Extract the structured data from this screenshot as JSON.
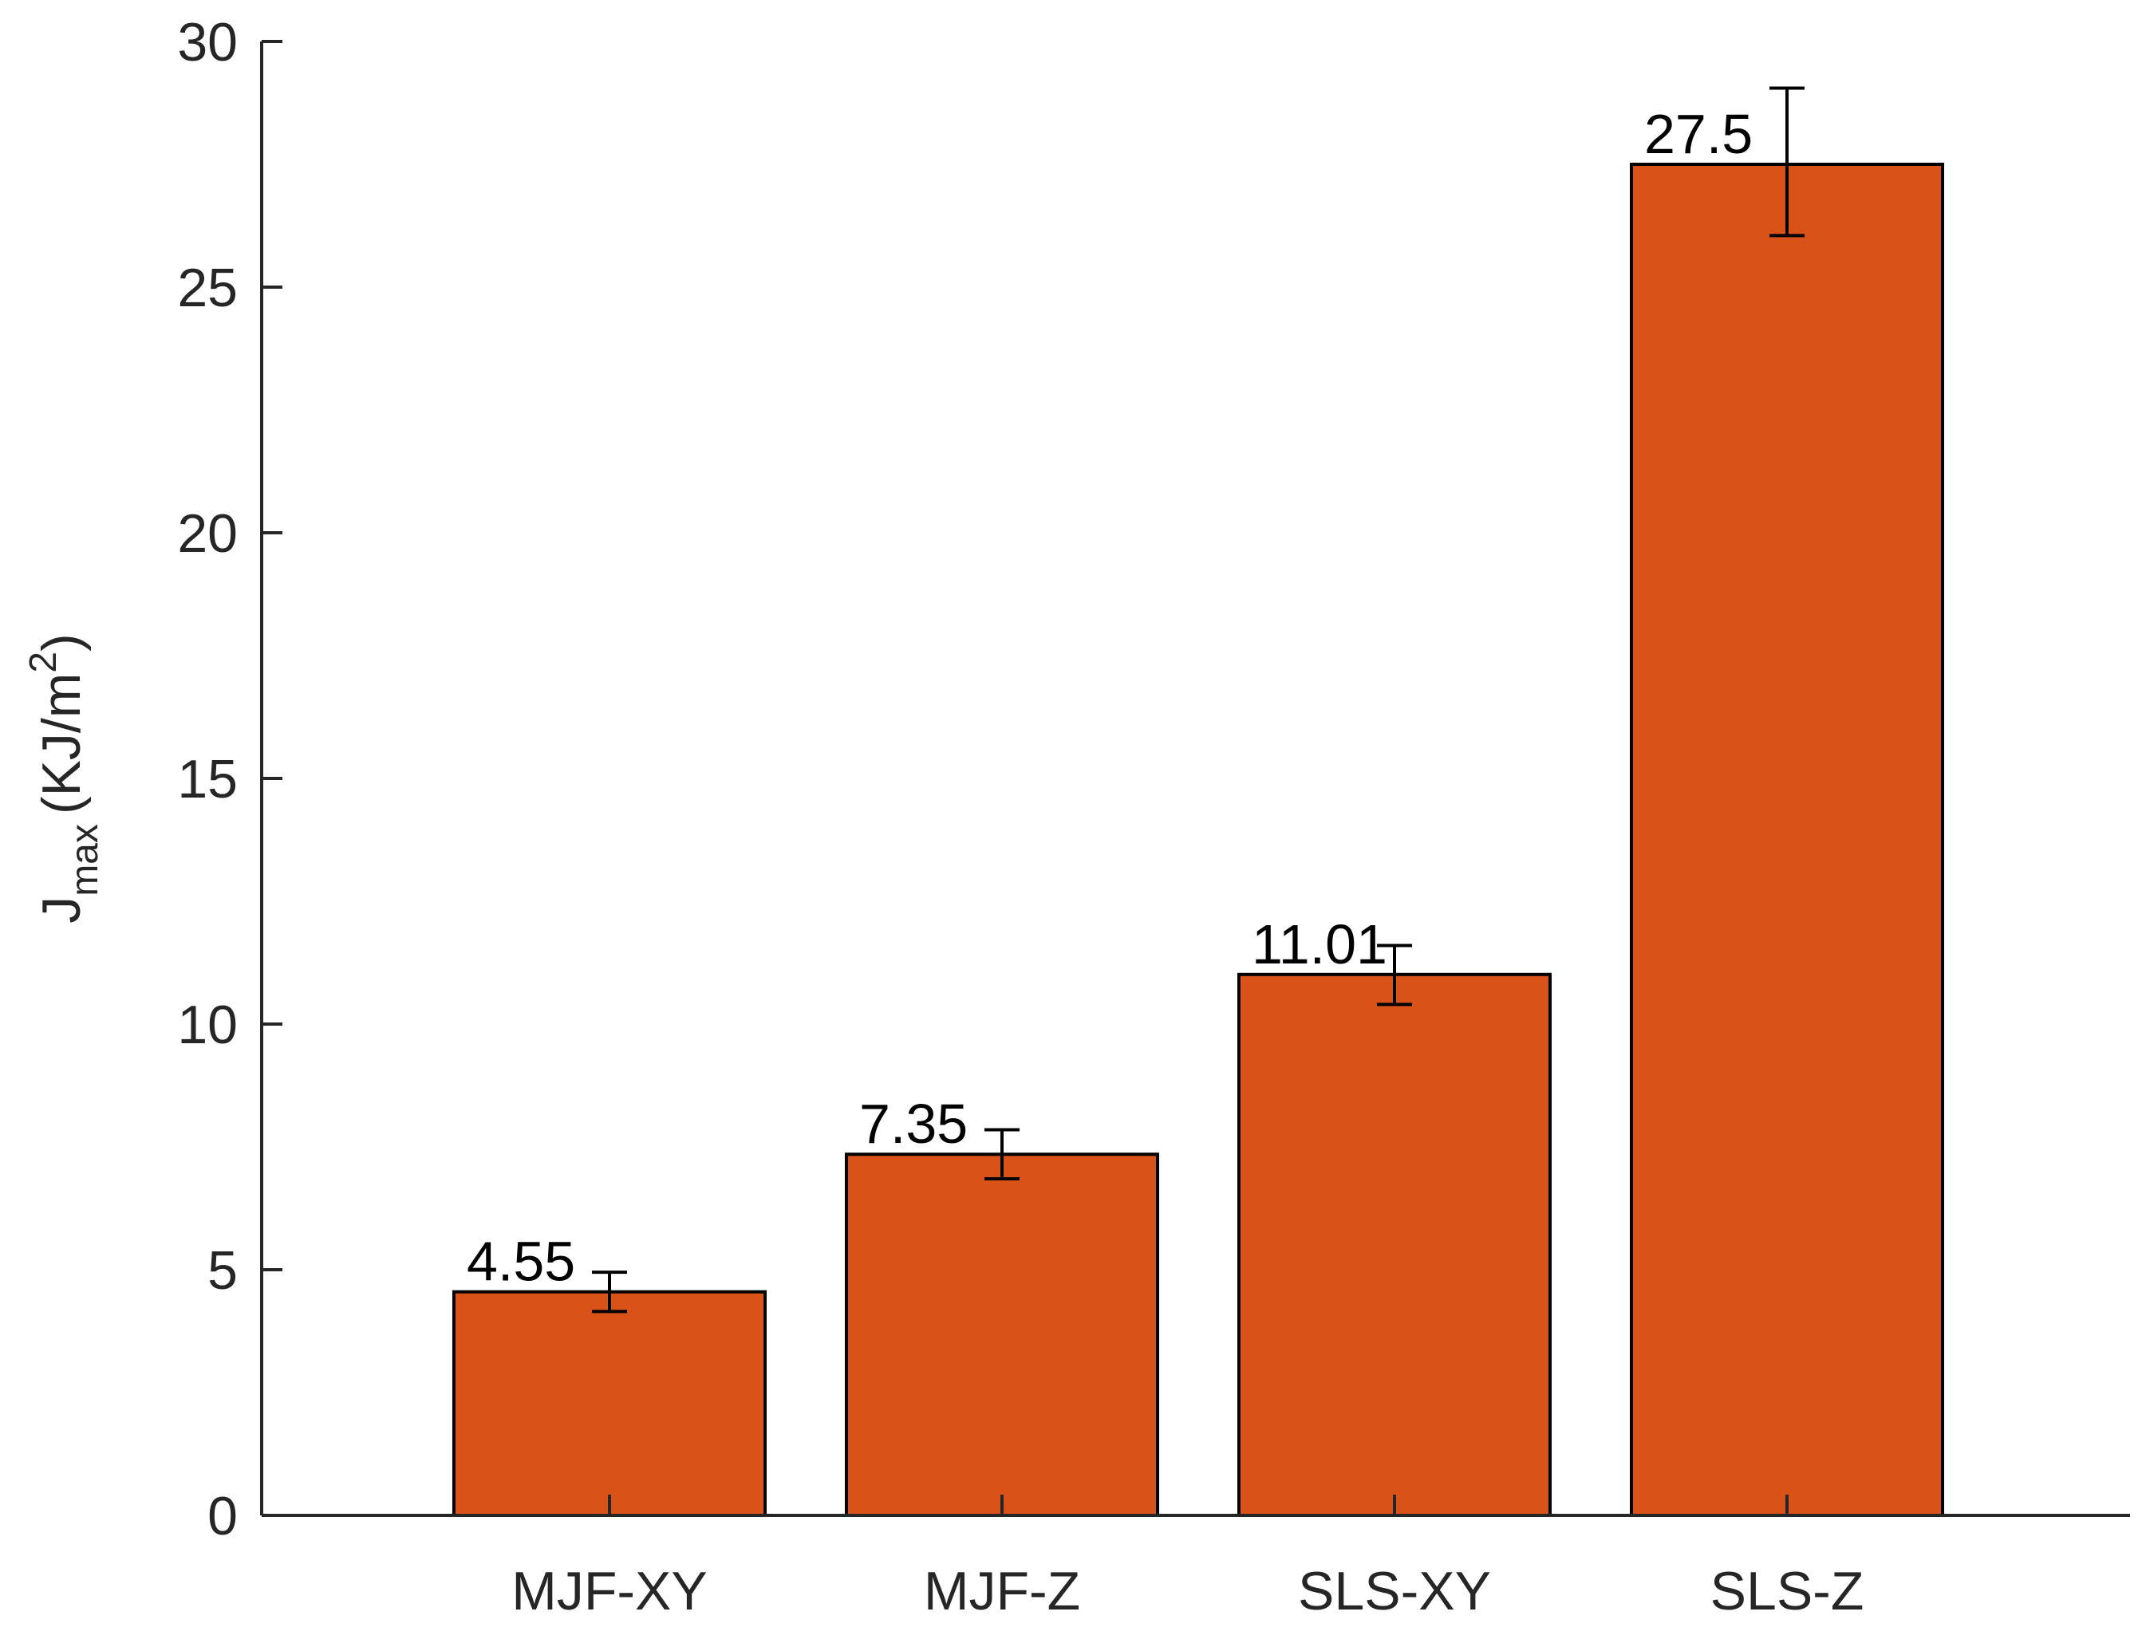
{
  "chart_data": {
    "type": "bar",
    "categories": [
      "MJF-XY",
      "MJF-Z",
      "SLS-XY",
      "SLS-Z"
    ],
    "values": [
      4.55,
      7.35,
      11.01,
      27.5
    ],
    "value_labels": [
      "4.55",
      "7.35",
      "11.01",
      "27.5"
    ],
    "error_low": [
      4.15,
      6.85,
      10.4,
      26.05
    ],
    "error_high": [
      4.95,
      7.85,
      11.6,
      29.05
    ],
    "ylabel": {
      "main": "J",
      "sub": "max",
      "unit": "(KJ/m",
      "sup": "2",
      "close": ")"
    },
    "ylim": [
      0,
      30
    ],
    "yticks": [
      0,
      5,
      10,
      15,
      20,
      25,
      30
    ],
    "grid": false,
    "colors": {
      "bar": "#D95319",
      "edge": "#000000",
      "axis": "#262626"
    }
  }
}
